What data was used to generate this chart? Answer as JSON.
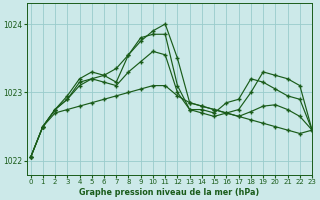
{
  "title": "Graphe pression niveau de la mer (hPa)",
  "background_color": "#cce9e9",
  "grid_color": "#99cccc",
  "line_color": "#1a5c1a",
  "ylim": [
    1021.8,
    1024.3
  ],
  "xlim": [
    -0.3,
    23
  ],
  "yticks": [
    1022,
    1023,
    1024
  ],
  "xticks": [
    0,
    1,
    2,
    3,
    4,
    5,
    6,
    7,
    8,
    9,
    10,
    11,
    12,
    13,
    14,
    15,
    16,
    17,
    18,
    19,
    20,
    21,
    22,
    23
  ],
  "series": [
    [
      1022.05,
      1022.5,
      1022.75,
      1022.9,
      1023.15,
      1023.2,
      1023.25,
      1023.35,
      1023.55,
      1023.75,
      1023.9,
      1024.0,
      1023.5,
      1022.85,
      1022.8,
      1022.75,
      1022.7,
      1022.65,
      1022.6,
      1022.55,
      1022.5,
      1022.45,
      1022.4,
      1022.45
    ],
    [
      1022.05,
      1022.5,
      1022.75,
      1022.95,
      1023.2,
      1023.3,
      1023.25,
      1023.15,
      1023.55,
      1023.8,
      1023.85,
      1023.85,
      1023.1,
      1022.75,
      1022.75,
      1022.7,
      1022.85,
      1022.9,
      1023.2,
      1023.15,
      1023.05,
      1022.95,
      1022.9,
      1022.45
    ],
    [
      1022.05,
      1022.5,
      1022.75,
      1022.9,
      1023.1,
      1023.2,
      1023.15,
      1023.1,
      1023.3,
      1023.45,
      1023.6,
      1023.55,
      1023.0,
      1022.75,
      1022.7,
      1022.65,
      1022.7,
      1022.75,
      1023.0,
      1023.3,
      1023.25,
      1023.2,
      1023.1,
      1022.45
    ],
    [
      1022.05,
      1022.5,
      1022.7,
      1022.75,
      1022.8,
      1022.85,
      1022.9,
      1022.95,
      1023.0,
      1023.05,
      1023.1,
      1023.1,
      1022.95,
      1022.85,
      1022.8,
      1022.75,
      1022.7,
      1022.65,
      1022.72,
      1022.8,
      1022.82,
      1022.75,
      1022.65,
      1022.45
    ]
  ]
}
